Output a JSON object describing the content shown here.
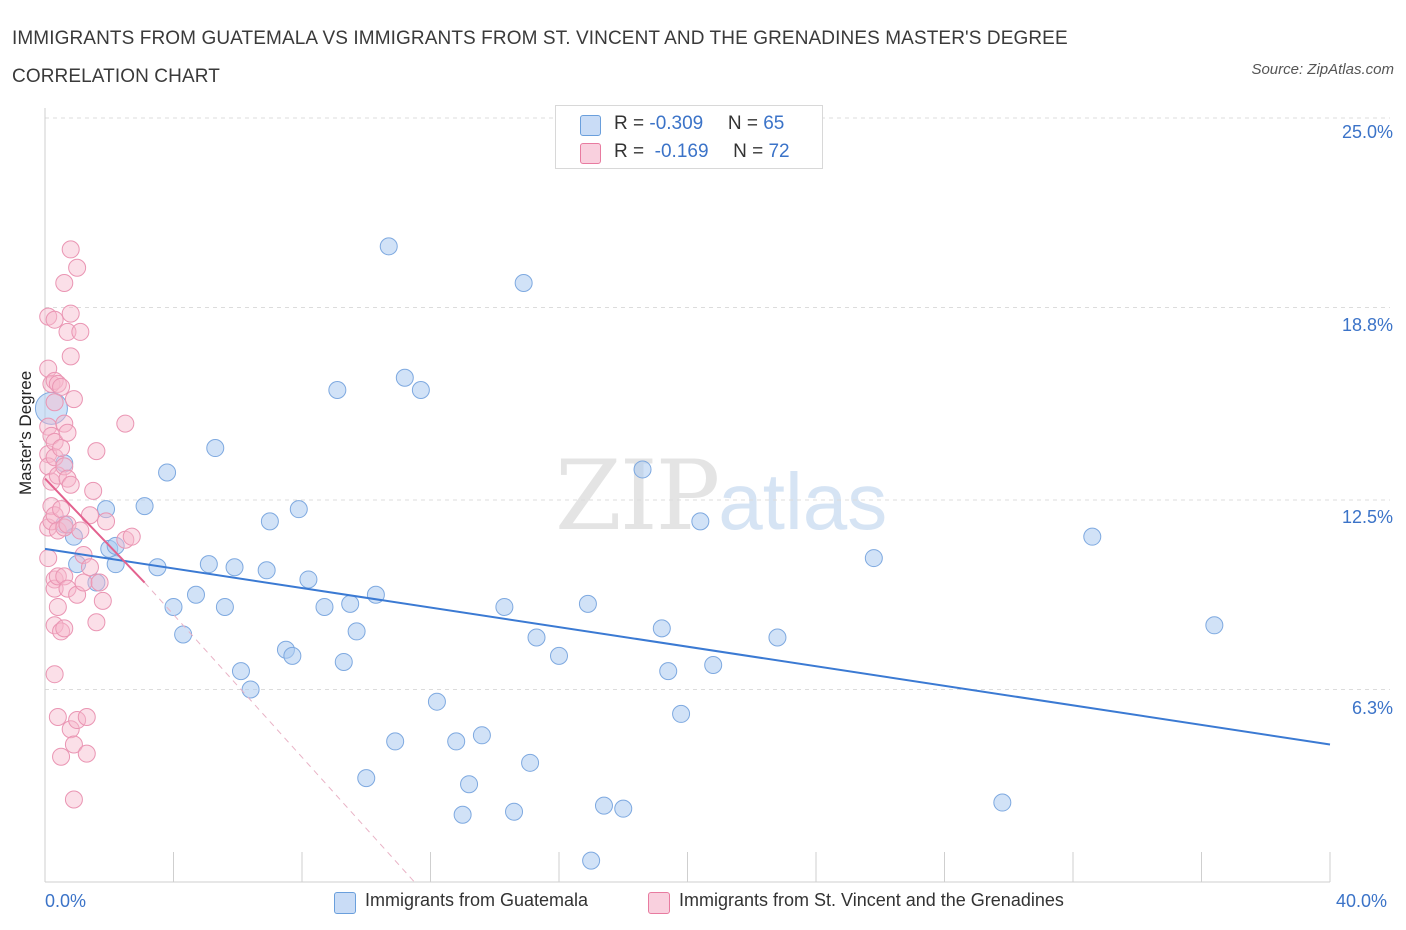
{
  "title": "IMMIGRANTS FROM GUATEMALA VS IMMIGRANTS FROM ST. VINCENT AND THE GRENADINES MASTER'S DEGREE CORRELATION CHART",
  "source": "Source: ZipAtlas.com",
  "watermark": {
    "zip": "ZIP",
    "atlas": "atlas"
  },
  "colors": {
    "blue": "#6a9fdc",
    "blue_fill": "#b9d3f3",
    "pink": "#e87ba0",
    "pink_fill": "#f7c4d6",
    "trend_blue": "#3b7ad3",
    "trend_pink": "#e3628f",
    "tick_text": "#3b73c8"
  },
  "legend": {
    "rows": [
      {
        "r_label": "R = ",
        "r_value": "-0.309",
        "n_label": "N = ",
        "n_value": "65"
      },
      {
        "r_label": "R = ",
        "r_value": " -0.169",
        "n_label": "N = ",
        "n_value": "72"
      }
    ]
  },
  "bottom_legend": [
    "Immigrants from Guatemala",
    "Immigrants from St. Vincent and the Grenadines"
  ],
  "chart_data": {
    "type": "scatter",
    "title": "IMMIGRANTS FROM GUATEMALA VS IMMIGRANTS FROM ST. VINCENT AND THE GRENADINES MASTER'S DEGREE CORRELATION CHART",
    "xlabel": "",
    "ylabel": "Master's Degree",
    "xlim": [
      0,
      40
    ],
    "ylim": [
      0,
      25
    ],
    "x_tick_labels": [
      "0.0%",
      "40.0%"
    ],
    "y_ticks": [
      6.3,
      12.5,
      18.8,
      25.0
    ],
    "y_tick_labels": [
      "6.3%",
      "12.5%",
      "18.8%",
      "25.0%"
    ],
    "grid": "horizontal dashed",
    "legend_position": "top-center",
    "series": [
      {
        "name": "Immigrants from Guatemala",
        "color": "#6a9fdc",
        "r": -0.309,
        "n": 65,
        "trend": {
          "x": [
            0,
            40
          ],
          "y": [
            10.9,
            4.5
          ]
        },
        "points": [
          [
            0.2,
            15.5
          ],
          [
            0.6,
            13.7
          ],
          [
            0.6,
            11.7
          ],
          [
            0.9,
            11.3
          ],
          [
            1.0,
            10.4
          ],
          [
            1.6,
            9.8
          ],
          [
            1.9,
            12.2
          ],
          [
            2.0,
            10.9
          ],
          [
            2.2,
            11.0
          ],
          [
            2.2,
            10.4
          ],
          [
            3.1,
            12.3
          ],
          [
            3.5,
            10.3
          ],
          [
            3.8,
            13.4
          ],
          [
            4.0,
            9.0
          ],
          [
            4.3,
            8.1
          ],
          [
            4.7,
            9.4
          ],
          [
            5.1,
            10.4
          ],
          [
            5.3,
            14.2
          ],
          [
            5.6,
            9.0
          ],
          [
            5.9,
            10.3
          ],
          [
            6.1,
            6.9
          ],
          [
            6.4,
            6.3
          ],
          [
            6.9,
            10.2
          ],
          [
            7.0,
            11.8
          ],
          [
            7.5,
            7.6
          ],
          [
            7.7,
            7.4
          ],
          [
            7.9,
            12.2
          ],
          [
            8.2,
            9.9
          ],
          [
            8.7,
            9.0
          ],
          [
            9.1,
            16.1
          ],
          [
            9.3,
            7.2
          ],
          [
            9.5,
            9.1
          ],
          [
            9.7,
            8.2
          ],
          [
            10.0,
            3.4
          ],
          [
            10.3,
            9.4
          ],
          [
            10.7,
            20.8
          ],
          [
            10.9,
            4.6
          ],
          [
            11.2,
            16.5
          ],
          [
            11.7,
            16.1
          ],
          [
            12.2,
            5.9
          ],
          [
            12.8,
            4.6
          ],
          [
            13.0,
            2.2
          ],
          [
            13.2,
            3.2
          ],
          [
            13.6,
            4.8
          ],
          [
            14.3,
            9.0
          ],
          [
            14.6,
            2.3
          ],
          [
            14.9,
            19.6
          ],
          [
            15.1,
            3.9
          ],
          [
            15.3,
            8.0
          ],
          [
            16.0,
            7.4
          ],
          [
            16.9,
            9.1
          ],
          [
            17.0,
            0.7
          ],
          [
            17.4,
            2.5
          ],
          [
            18.0,
            2.4
          ],
          [
            18.6,
            13.5
          ],
          [
            19.2,
            8.3
          ],
          [
            19.4,
            6.9
          ],
          [
            19.8,
            5.5
          ],
          [
            20.4,
            11.8
          ],
          [
            20.8,
            7.1
          ],
          [
            22.8,
            8.0
          ],
          [
            25.8,
            10.6
          ],
          [
            29.8,
            2.6
          ],
          [
            32.6,
            11.3
          ],
          [
            36.4,
            8.4
          ]
        ]
      },
      {
        "name": "Immigrants from St. Vincent and the Grenadines",
        "color": "#e87ba0",
        "r": -0.169,
        "n": 72,
        "trend": {
          "x": [
            0,
            3.1
          ],
          "y": [
            13.2,
            9.8
          ]
        },
        "trend_extension": {
          "x": [
            3.1,
            11.5
          ],
          "y": [
            9.8,
            0
          ]
        },
        "points": [
          [
            0.1,
            18.5
          ],
          [
            0.1,
            16.8
          ],
          [
            0.1,
            14.9
          ],
          [
            0.1,
            14.0
          ],
          [
            0.1,
            13.6
          ],
          [
            0.1,
            11.6
          ],
          [
            0.1,
            10.6
          ],
          [
            0.2,
            16.3
          ],
          [
            0.2,
            14.6
          ],
          [
            0.2,
            13.1
          ],
          [
            0.2,
            12.3
          ],
          [
            0.2,
            11.8
          ],
          [
            0.3,
            18.4
          ],
          [
            0.3,
            16.4
          ],
          [
            0.3,
            15.7
          ],
          [
            0.3,
            14.4
          ],
          [
            0.3,
            13.9
          ],
          [
            0.3,
            12.0
          ],
          [
            0.3,
            9.9
          ],
          [
            0.3,
            9.6
          ],
          [
            0.3,
            8.4
          ],
          [
            0.3,
            6.8
          ],
          [
            0.4,
            16.3
          ],
          [
            0.4,
            13.3
          ],
          [
            0.4,
            11.5
          ],
          [
            0.4,
            10.0
          ],
          [
            0.4,
            9.0
          ],
          [
            0.4,
            5.4
          ],
          [
            0.5,
            16.2
          ],
          [
            0.5,
            14.2
          ],
          [
            0.5,
            12.2
          ],
          [
            0.5,
            8.2
          ],
          [
            0.5,
            4.1
          ],
          [
            0.6,
            19.6
          ],
          [
            0.6,
            15.0
          ],
          [
            0.6,
            13.6
          ],
          [
            0.6,
            11.6
          ],
          [
            0.6,
            10.0
          ],
          [
            0.6,
            8.3
          ],
          [
            0.7,
            18.0
          ],
          [
            0.7,
            14.7
          ],
          [
            0.7,
            13.2
          ],
          [
            0.7,
            11.7
          ],
          [
            0.7,
            9.6
          ],
          [
            0.8,
            20.7
          ],
          [
            0.8,
            18.6
          ],
          [
            0.8,
            17.2
          ],
          [
            0.8,
            13.0
          ],
          [
            0.8,
            5.0
          ],
          [
            0.9,
            15.8
          ],
          [
            0.9,
            4.5
          ],
          [
            0.9,
            2.7
          ],
          [
            1.0,
            20.1
          ],
          [
            1.0,
            9.4
          ],
          [
            1.0,
            5.3
          ],
          [
            1.1,
            18.0
          ],
          [
            1.1,
            11.5
          ],
          [
            1.2,
            10.7
          ],
          [
            1.2,
            9.8
          ],
          [
            1.3,
            4.2
          ],
          [
            1.3,
            5.4
          ],
          [
            1.4,
            12.0
          ],
          [
            1.4,
            10.3
          ],
          [
            1.5,
            12.8
          ],
          [
            1.6,
            14.1
          ],
          [
            1.6,
            8.5
          ],
          [
            1.7,
            9.8
          ],
          [
            1.8,
            9.2
          ],
          [
            1.9,
            11.8
          ],
          [
            2.5,
            11.2
          ],
          [
            2.5,
            15.0
          ],
          [
            2.7,
            11.3
          ]
        ]
      }
    ]
  }
}
